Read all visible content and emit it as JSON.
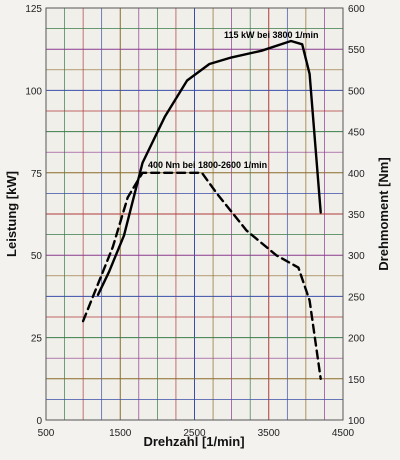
{
  "chart_data": {
    "type": "line",
    "xlabel": "Drehzahl [1/min]",
    "ylabel_left": "Leistung [kW]",
    "ylabel_right": "Drehmoment [Nm]",
    "xlim": [
      500,
      4500
    ],
    "ylim_left": [
      0,
      125
    ],
    "ylim_right": [
      100,
      600
    ],
    "x_ticks": [
      "500",
      "1500",
      "2500",
      "3500",
      "4500"
    ],
    "y_left_ticks": [
      "0",
      "25",
      "50",
      "75",
      "100",
      "125"
    ],
    "y_right_ticks": [
      "100",
      "150",
      "200",
      "250",
      "300",
      "350",
      "400",
      "450",
      "500",
      "550",
      "600"
    ],
    "grid": true,
    "series": [
      {
        "axis": "left",
        "style": "solid",
        "color": "#000000",
        "x": [
          1200,
          1350,
          1550,
          1800,
          2100,
          2400,
          2700,
          3000,
          3400,
          3800,
          3950,
          4050,
          4200
        ],
        "y": [
          38,
          45,
          56,
          78,
          92,
          103,
          108,
          110,
          112,
          115,
          114,
          105,
          63
        ]
      },
      {
        "axis": "right",
        "style": "dashed",
        "color": "#000000",
        "x": [
          1000,
          1200,
          1400,
          1600,
          1800,
          2600,
          2800,
          3200,
          3600,
          3900,
          4050,
          4200
        ],
        "y": [
          220,
          265,
          310,
          370,
          400,
          400,
          375,
          330,
          300,
          285,
          245,
          150
        ]
      }
    ],
    "annotations": [
      "115 kW bei 3800 1/min",
      "400 Nm bei 1800-2600 1/min"
    ]
  }
}
